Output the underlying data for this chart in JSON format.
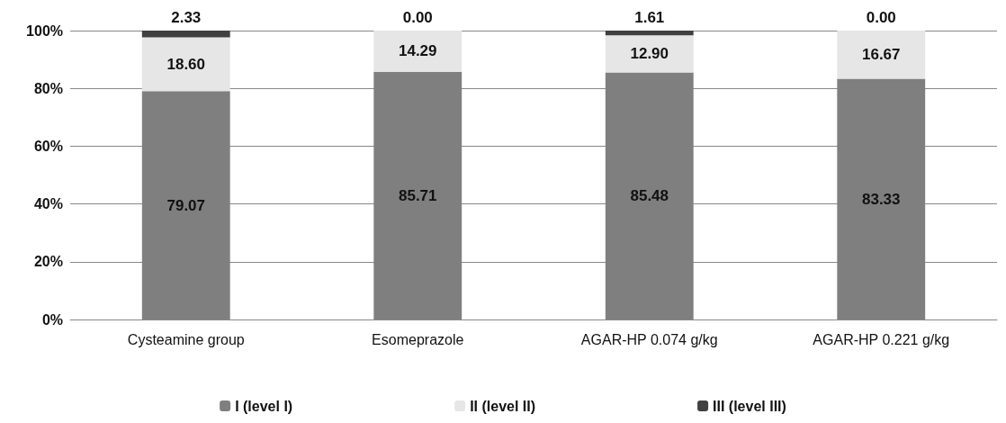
{
  "chart_data": {
    "type": "bar",
    "stacked": true,
    "categories": [
      "Cysteamine group",
      "Esomeprazole",
      "AGAR-HP 0.074 g/kg",
      "AGAR-HP 0.221 g/kg"
    ],
    "series": [
      {
        "name": "I (level I)",
        "color": "#7f7f7f",
        "values": [
          79.07,
          85.71,
          85.48,
          83.33
        ],
        "value_labels": [
          "79.07",
          "85.71",
          "85.48",
          "83.33"
        ]
      },
      {
        "name": "II (level II)",
        "color": "#e6e6e6",
        "values": [
          18.6,
          14.29,
          12.9,
          16.67
        ],
        "value_labels": [
          "18.60",
          "14.29",
          "12.90",
          "16.67"
        ]
      },
      {
        "name": "III (level III)",
        "color": "#404040",
        "values": [
          2.33,
          0.0,
          1.61,
          0.0
        ],
        "value_labels": [
          "2.33",
          "0.00",
          "1.61",
          "0.00"
        ]
      }
    ],
    "ylim": [
      0,
      100
    ],
    "yticks": [
      {
        "value": 0,
        "label": "0%"
      },
      {
        "value": 20,
        "label": "20%"
      },
      {
        "value": 40,
        "label": "40%"
      },
      {
        "value": 60,
        "label": "60%"
      },
      {
        "value": 80,
        "label": "80%"
      },
      {
        "value": 100,
        "label": "100%"
      }
    ],
    "grid": "y",
    "legend": "bottom"
  }
}
